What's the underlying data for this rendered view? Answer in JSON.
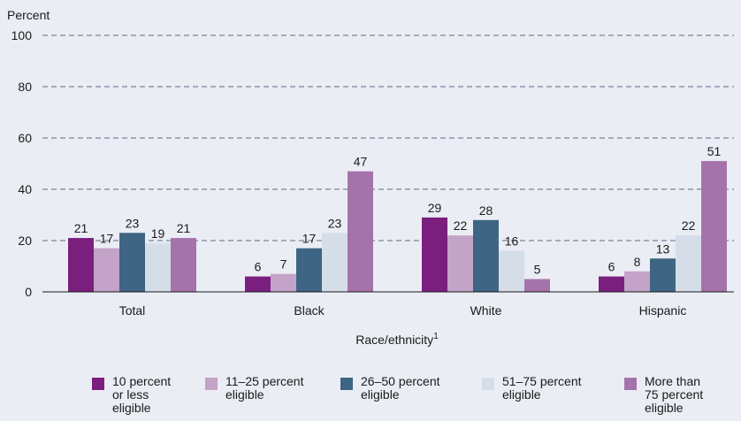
{
  "chart_data": {
    "type": "bar",
    "ylabel": "Percent",
    "xlabel": "Race/ethnicity",
    "xlabel_sup": "1",
    "ylim": [
      0,
      100
    ],
    "yticks": [
      0,
      20,
      40,
      60,
      80,
      100
    ],
    "grid": "dashed horizontal",
    "legend_position": "bottom",
    "categories": [
      "Total",
      "Black",
      "White",
      "Hispanic"
    ],
    "series": [
      {
        "name": "10 percent\nor less\neligible",
        "color": "#7b1f7e",
        "values": [
          21,
          6,
          29,
          6
        ]
      },
      {
        "name": "11–25 percent\neligible",
        "color": "#c3a3c8",
        "values": [
          17,
          7,
          22,
          8
        ]
      },
      {
        "name": "26–50 percent\neligible",
        "color": "#3e6583",
        "values": [
          23,
          17,
          28,
          13
        ]
      },
      {
        "name": "51–75 percent\neligible",
        "color": "#d5dde8",
        "values": [
          19,
          23,
          16,
          22
        ]
      },
      {
        "name": "More than\n75 percent\neligible",
        "color": "#a573ab",
        "values": [
          21,
          47,
          5,
          51
        ]
      }
    ]
  }
}
